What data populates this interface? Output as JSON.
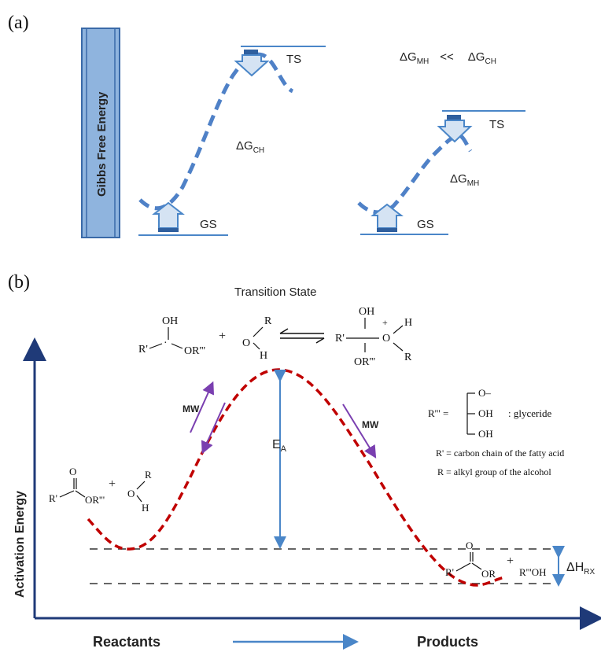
{
  "panel_a": {
    "label": "(a)",
    "axis_label": "Gibbs  Free  Energy",
    "comparison": {
      "left": "ΔG",
      "left_sub": "MH",
      "op": "<<",
      "right": "ΔG",
      "right_sub": "CH"
    },
    "left_profile": {
      "ts": "TS",
      "gs": "GS",
      "dg": "ΔG",
      "dg_sub": "CH"
    },
    "right_profile": {
      "ts": "TS",
      "gs": "GS",
      "dg": "ΔG",
      "dg_sub": "MH"
    }
  },
  "panel_b": {
    "label": "(b)",
    "title": "Transition State",
    "y_axis_label": "Activation  Energy",
    "x_left": "Reactants",
    "x_right": "Products",
    "mw": "MW",
    "ea": "E",
    "ea_sub": "A",
    "dh": "ΔH",
    "dh_sub": "RX",
    "ts_scheme": {
      "oh": "OH",
      "rprime": "R'",
      "dot": "·",
      "orsub": "OR'''",
      "plus": "+",
      "r": "R",
      "o": "O",
      "h": "H",
      "plus_charge": "+"
    },
    "reactant": {
      "o": "O",
      "rprime": "R'",
      "or": "OR'''",
      "plus": "+",
      "r": "R",
      "o2": "O",
      "h": "H"
    },
    "product": {
      "o": "O",
      "rprime": "R'",
      "or": "OR",
      "plus": "+",
      "roh": "R'''OH"
    },
    "legend": {
      "r3_label": "R''' =",
      "o_minus": "O–",
      "oh1": "OH",
      "oh2": "OH",
      "glyceride": ": glyceride",
      "rprime_def": "R' = carbon chain of the fatty acid",
      "r_def": "R  = alkyl group of the alcohol"
    }
  },
  "colors": {
    "line_blue": "#4a86c8",
    "dash_blue": "#4f81c7",
    "bar_blue": "#8fb4de",
    "arrow_fill": "#d5e3f3",
    "red_dash": "#c00000",
    "purple": "#7a3fb0",
    "navy": "#1f3a78",
    "grey_dash": "#666666"
  }
}
